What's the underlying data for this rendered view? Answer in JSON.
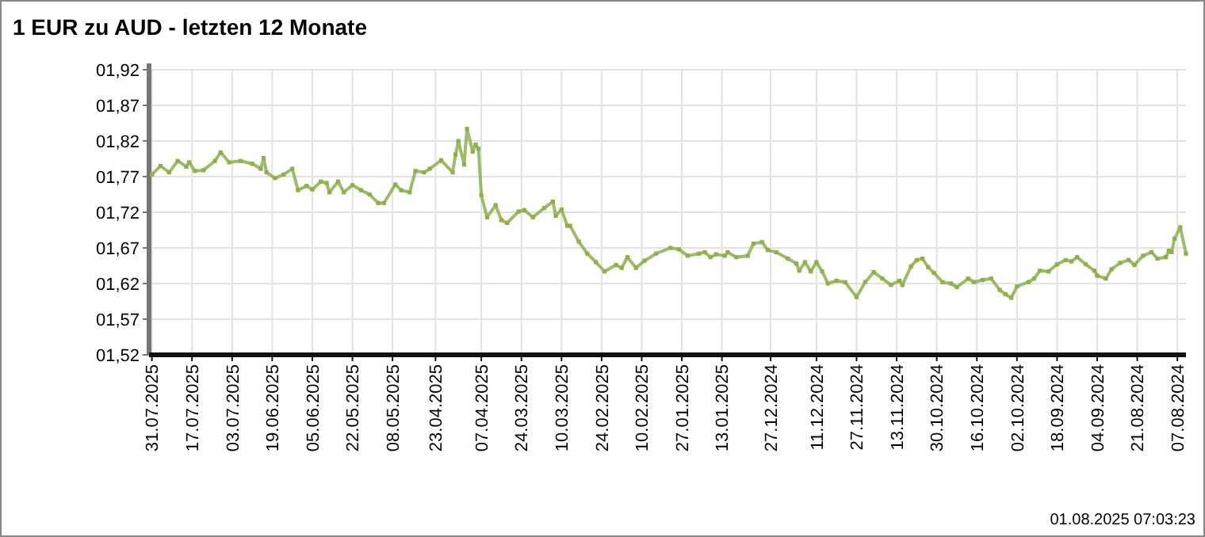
{
  "chart_data": {
    "type": "line",
    "title": "1 EUR zu AUD - letzten 12 Monate",
    "annotations": [
      "01.08.2025 07:03:23"
    ],
    "x": [
      "2025-07-31",
      "2025-07-28",
      "2025-07-25",
      "2025-07-22",
      "2025-07-19",
      "2025-07-18",
      "2025-07-16",
      "2025-07-13",
      "2025-07-09",
      "2025-07-07",
      "2025-07-04",
      "2025-06-30",
      "2025-06-26",
      "2025-06-23",
      "2025-06-22",
      "2025-06-21",
      "2025-06-18",
      "2025-06-15",
      "2025-06-12",
      "2025-06-10",
      "2025-06-07",
      "2025-06-05",
      "2025-06-02",
      "2025-05-31",
      "2025-05-30",
      "2025-05-27",
      "2025-05-25",
      "2025-05-22",
      "2025-05-19",
      "2025-05-16",
      "2025-05-13",
      "2025-05-11",
      "2025-05-07",
      "2025-05-05",
      "2025-05-02",
      "2025-04-30",
      "2025-04-27",
      "2025-04-25",
      "2025-04-21",
      "2025-04-17",
      "2025-04-16",
      "2025-04-15",
      "2025-04-13",
      "2025-04-12",
      "2025-04-10",
      "2025-04-09",
      "2025-04-08",
      "2025-04-07",
      "2025-04-05",
      "2025-04-02",
      "2025-03-31",
      "2025-03-29",
      "2025-03-25",
      "2025-03-23",
      "2025-03-20",
      "2025-03-16",
      "2025-03-13",
      "2025-03-12",
      "2025-03-10",
      "2025-03-08",
      "2025-03-07",
      "2025-03-04",
      "2025-03-01",
      "2025-02-26",
      "2025-02-23",
      "2025-02-19",
      "2025-02-17",
      "2025-02-15",
      "2025-02-12",
      "2025-02-09",
      "2025-02-05",
      "2025-01-31",
      "2025-01-28",
      "2025-01-25",
      "2025-01-21",
      "2025-01-19",
      "2025-01-17",
      "2025-01-15",
      "2025-01-12",
      "2025-01-11",
      "2025-01-08",
      "2025-01-04",
      "2025-01-02",
      "2024-12-30",
      "2024-12-28",
      "2024-12-25",
      "2024-12-21",
      "2024-12-18",
      "2024-12-17",
      "2024-12-15",
      "2024-12-13",
      "2024-12-11",
      "2024-12-09",
      "2024-12-07",
      "2024-12-04",
      "2024-12-01",
      "2024-11-27",
      "2024-11-24",
      "2024-11-21",
      "2024-11-18",
      "2024-11-15",
      "2024-11-12",
      "2024-11-11",
      "2024-11-08",
      "2024-11-06",
      "2024-11-04",
      "2024-11-02",
      "2024-10-31",
      "2024-10-28",
      "2024-10-25",
      "2024-10-23",
      "2024-10-19",
      "2024-10-17",
      "2024-10-14",
      "2024-10-11",
      "2024-10-08",
      "2024-10-06",
      "2024-10-04",
      "2024-10-02",
      "2024-09-28",
      "2024-09-26",
      "2024-09-24",
      "2024-09-21",
      "2024-09-18",
      "2024-09-15",
      "2024-09-13",
      "2024-09-11",
      "2024-09-08",
      "2024-09-05",
      "2024-09-04",
      "2024-09-01",
      "2024-08-30",
      "2024-08-27",
      "2024-08-24",
      "2024-08-22",
      "2024-08-19",
      "2024-08-16",
      "2024-08-14",
      "2024-08-11",
      "2024-08-10",
      "2024-08-09",
      "2024-08-08",
      "2024-08-06",
      "2024-08-04"
    ],
    "series": [
      {
        "color": "#8db04b",
        "values": [
          1.773,
          1.785,
          1.776,
          1.792,
          1.784,
          1.79,
          1.778,
          1.779,
          1.792,
          1.804,
          1.79,
          1.792,
          1.788,
          1.781,
          1.796,
          1.776,
          1.768,
          1.773,
          1.781,
          1.751,
          1.757,
          1.752,
          1.763,
          1.761,
          1.748,
          1.763,
          1.748,
          1.758,
          1.751,
          1.745,
          1.733,
          1.733,
          1.759,
          1.751,
          1.748,
          1.778,
          1.776,
          1.781,
          1.793,
          1.776,
          1.801,
          1.82,
          1.787,
          1.837,
          1.805,
          1.815,
          1.809,
          1.744,
          1.713,
          1.73,
          1.709,
          1.705,
          1.721,
          1.723,
          1.713,
          1.726,
          1.735,
          1.715,
          1.724,
          1.701,
          1.701,
          1.679,
          1.662,
          1.65,
          1.637,
          1.646,
          1.642,
          1.657,
          1.642,
          1.652,
          1.662,
          1.67,
          1.668,
          1.659,
          1.662,
          1.664,
          1.657,
          1.661,
          1.659,
          1.664,
          1.657,
          1.659,
          1.676,
          1.678,
          1.667,
          1.664,
          1.655,
          1.648,
          1.638,
          1.65,
          1.637,
          1.65,
          1.637,
          1.62,
          1.624,
          1.622,
          1.601,
          1.622,
          1.636,
          1.627,
          1.618,
          1.624,
          1.618,
          1.644,
          1.653,
          1.655,
          1.643,
          1.635,
          1.622,
          1.62,
          1.615,
          1.627,
          1.622,
          1.625,
          1.627,
          1.611,
          1.605,
          1.6,
          1.616,
          1.622,
          1.627,
          1.638,
          1.637,
          1.647,
          1.653,
          1.651,
          1.657,
          1.647,
          1.638,
          1.631,
          1.627,
          1.64,
          1.649,
          1.653,
          1.646,
          1.659,
          1.664,
          1.655,
          1.657,
          1.666,
          1.664,
          1.683,
          1.699,
          1.662
        ]
      }
    ],
    "xlim": [
      "2025-08-01",
      "2024-08-04"
    ],
    "xticks": [
      {
        "value": "2025-07-31",
        "label": "31.07.2025"
      },
      {
        "value": "2025-07-17",
        "label": "17.07.2025"
      },
      {
        "value": "2025-07-03",
        "label": "03.07.2025"
      },
      {
        "value": "2025-06-19",
        "label": "19.06.2025"
      },
      {
        "value": "2025-06-05",
        "label": "05.06.2025"
      },
      {
        "value": "2025-05-22",
        "label": "22.05.2025"
      },
      {
        "value": "2025-05-08",
        "label": "08.05.2025"
      },
      {
        "value": "2025-04-23",
        "label": "23.04.2025"
      },
      {
        "value": "2025-04-07",
        "label": "07.04.2025"
      },
      {
        "value": "2025-03-24",
        "label": "24.03.2025"
      },
      {
        "value": "2025-03-10",
        "label": "10.03.2025"
      },
      {
        "value": "2025-02-24",
        "label": "24.02.2025"
      },
      {
        "value": "2025-02-10",
        "label": "10.02.2025"
      },
      {
        "value": "2025-01-27",
        "label": "27.01.2025"
      },
      {
        "value": "2025-01-13",
        "label": "13.01.2025"
      },
      {
        "value": "2024-12-27",
        "label": "27.12.2024"
      },
      {
        "value": "2024-12-11",
        "label": "11.12.2024"
      },
      {
        "value": "2024-11-27",
        "label": "27.11.2024"
      },
      {
        "value": "2024-11-13",
        "label": "13.11.2024"
      },
      {
        "value": "2024-10-30",
        "label": "30.10.2024"
      },
      {
        "value": "2024-10-16",
        "label": "16.10.2024"
      },
      {
        "value": "2024-10-02",
        "label": "02.10.2024"
      },
      {
        "value": "2024-09-18",
        "label": "18.09.2024"
      },
      {
        "value": "2024-09-04",
        "label": "04.09.2024"
      },
      {
        "value": "2024-08-21",
        "label": "21.08.2024"
      },
      {
        "value": "2024-08-07",
        "label": "07.08.2024"
      }
    ],
    "ylim": [
      1.52,
      1.92
    ],
    "yticks": [
      {
        "value": 1.52,
        "label": "01,52"
      },
      {
        "value": 1.57,
        "label": "01,57"
      },
      {
        "value": 1.62,
        "label": "01,62"
      },
      {
        "value": 1.67,
        "label": "01,67"
      },
      {
        "value": 1.72,
        "label": "01,72"
      },
      {
        "value": 1.77,
        "label": "01,77"
      },
      {
        "value": 1.82,
        "label": "01,82"
      },
      {
        "value": 1.87,
        "label": "01,87"
      },
      {
        "value": 1.92,
        "label": "01,92"
      }
    ],
    "grid": true,
    "marker": "square",
    "line_style": "solid"
  }
}
